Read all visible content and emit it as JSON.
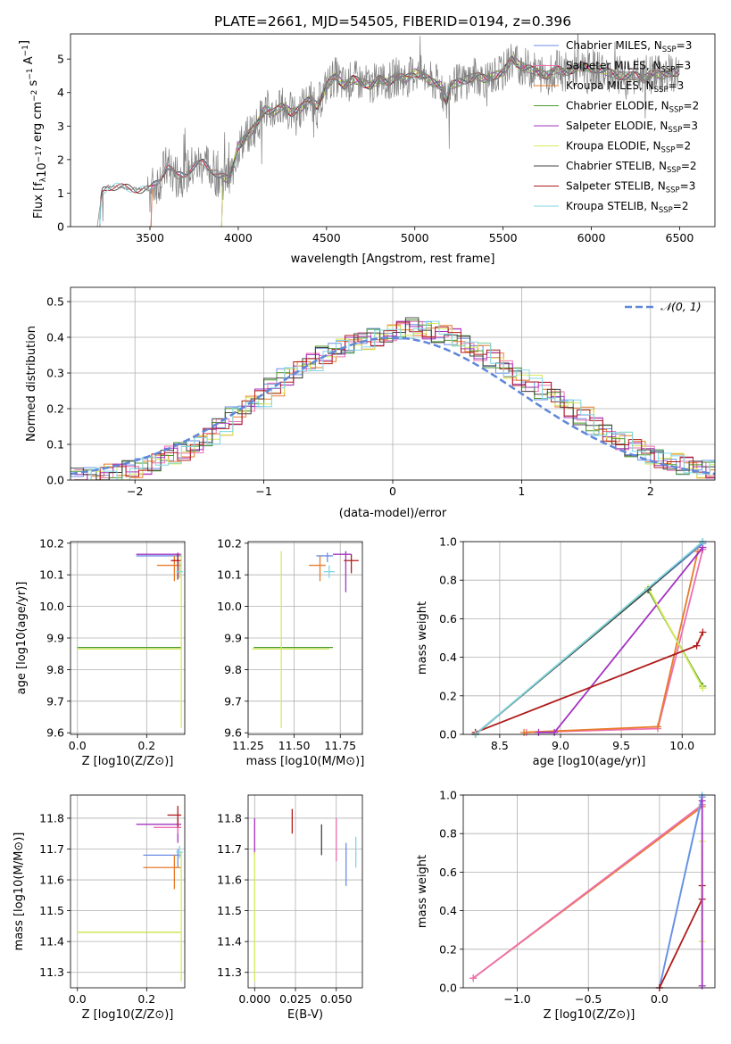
{
  "figure_title": "PLATE=2661, MJD=54505, FIBERID=0194, z=0.396",
  "chart_data": [
    {
      "id": "spectrum",
      "type": "line",
      "title": "PLATE=2661, MJD=54505, FIBERID=0194, z=0.396",
      "xlabel": "wavelength [Angstrom, rest frame]",
      "ylabel": "Flux [f_λ 10^-17 erg cm^-2 s^-1 A^-1]",
      "xlim": [
        3050,
        6700
      ],
      "ylim": [
        0,
        5.75
      ],
      "xticks": [
        3500,
        4000,
        4500,
        5000,
        5500,
        6000,
        6500
      ],
      "yticks": [
        0,
        1,
        2,
        3,
        4,
        5
      ],
      "grid": false,
      "legend_position": "upper-right",
      "data_curve": {
        "color": "#808080",
        "x": [
          3200,
          3230,
          3260,
          3300,
          3350,
          3400,
          3450,
          3500,
          3550,
          3600,
          3650,
          3700,
          3750,
          3800,
          3850,
          3900,
          3950,
          4000,
          4050,
          4100,
          4150,
          4200,
          4250,
          4300,
          4350,
          4400,
          4450,
          4500,
          4550,
          4600,
          4650,
          4700,
          4750,
          4800,
          4850,
          4900,
          4950,
          5000,
          5050,
          5100,
          5150,
          5180,
          5200,
          5250,
          5300,
          5350,
          5400,
          5450,
          5500,
          5550,
          5600,
          5650,
          5700,
          5750,
          5800,
          5850,
          5900,
          5950,
          6000,
          6050,
          6100,
          6150,
          6200,
          6250,
          6300,
          6350,
          6400,
          6450,
          6500
        ],
        "y": [
          0,
          1.05,
          1.2,
          1.2,
          1.15,
          1.15,
          1.1,
          1.1,
          1.4,
          1.8,
          1.5,
          1.6,
          1.8,
          1.9,
          1.7,
          1.5,
          1.4,
          2.4,
          2.7,
          3.0,
          3.5,
          3.4,
          3.6,
          3.4,
          3.5,
          3.8,
          3.6,
          4.2,
          4.5,
          4.2,
          4.4,
          4.3,
          4.2,
          4.4,
          4.3,
          4.5,
          4.4,
          4.6,
          4.5,
          4.3,
          4.2,
          3.7,
          4.2,
          4.3,
          4.4,
          4.5,
          4.4,
          4.5,
          4.6,
          5.0,
          4.8,
          4.7,
          4.6,
          4.5,
          4.7,
          4.6,
          4.7,
          4.8,
          4.7,
          4.7,
          4.6,
          4.5,
          4.5,
          4.5,
          4.4,
          4.6,
          4.5,
          4.6,
          4.6
        ]
      },
      "series": [
        {
          "name": "Chabrier MILES, N_SSP=3",
          "color": "#6b8ee6"
        },
        {
          "name": "Salpeter MILES, N_SSP=3",
          "color": "#ee6fb0"
        },
        {
          "name": "Kroupa MILES, N_SSP=3",
          "color": "#e77b2a"
        },
        {
          "name": "Chabrier ELODIE, N_SSP=2",
          "color": "#4c9a2a"
        },
        {
          "name": "Salpeter ELODIE, N_SSP=3",
          "color": "#a334c0"
        },
        {
          "name": "Kroupa ELODIE, N_SSP=2",
          "color": "#d7ea5a"
        },
        {
          "name": "Chabrier STELIB, N_SSP=2",
          "color": "#444444"
        },
        {
          "name": "Salpeter STELIB, N_SSP=3",
          "color": "#b01c1c"
        },
        {
          "name": "Kroupa STELIB, N_SSP=2",
          "color": "#7fd6e6"
        }
      ],
      "legend_entries": [
        {
          "base": "Chabrier MILES, N",
          "sub": "SSP",
          "tail": "=3"
        },
        {
          "base": "Salpeter MILES, N",
          "sub": "SSP",
          "tail": "=3"
        },
        {
          "base": "Kroupa MILES, N",
          "sub": "SSP",
          "tail": "=3"
        },
        {
          "base": "Chabrier ELODIE, N",
          "sub": "SSP",
          "tail": "=2"
        },
        {
          "base": "Salpeter ELODIE, N",
          "sub": "SSP",
          "tail": "=3"
        },
        {
          "base": "Kroupa ELODIE, N",
          "sub": "SSP",
          "tail": "=2"
        },
        {
          "base": "Chabrier STELIB, N",
          "sub": "SSP",
          "tail": "=2"
        },
        {
          "base": "Salpeter STELIB, N",
          "sub": "SSP",
          "tail": "=3"
        },
        {
          "base": "Kroupa STELIB, N",
          "sub": "SSP",
          "tail": "=2"
        }
      ]
    },
    {
      "id": "residuals",
      "type": "histogram",
      "xlabel": "(data-model)/error",
      "ylabel": "Normed distribution",
      "xlim": [
        -2.5,
        2.5
      ],
      "ylim": [
        0,
        0.54
      ],
      "xticks": [
        -2,
        -1,
        0,
        1,
        2
      ],
      "yticks": [
        0.0,
        0.1,
        0.2,
        0.3,
        0.4,
        0.5
      ],
      "grid": true,
      "legend": {
        "label": "𝒩(0, 1)",
        "position": "upper-right",
        "color": "#5f87d9",
        "style": "dashed"
      },
      "bin_edges_start": -2.5,
      "bin_width": 0.1,
      "histogram_values": [
        0.01,
        0.01,
        0.02,
        0.02,
        0.03,
        0.04,
        0.05,
        0.07,
        0.08,
        0.1,
        0.12,
        0.15,
        0.18,
        0.21,
        0.23,
        0.26,
        0.29,
        0.31,
        0.33,
        0.35,
        0.37,
        0.38,
        0.39,
        0.4,
        0.41,
        0.42,
        0.43,
        0.42,
        0.41,
        0.4,
        0.38,
        0.36,
        0.34,
        0.31,
        0.29,
        0.27,
        0.25,
        0.23,
        0.2,
        0.18,
        0.15,
        0.13,
        0.11,
        0.09,
        0.07,
        0.06,
        0.05,
        0.04,
        0.03,
        0.03
      ]
    },
    {
      "id": "age-vs-Z",
      "type": "scatter",
      "xlabel": "Z [log10(Z/Z⊙)]",
      "ylabel": "age [log10(age/yr)]",
      "xlim": [
        -0.02,
        0.31
      ],
      "ylim": [
        9.595,
        10.205
      ],
      "xticks": [
        0.0,
        0.2
      ],
      "yticks": [
        9.6,
        9.7,
        9.8,
        9.9,
        10.0,
        10.1,
        10.2
      ],
      "grid": true,
      "points": [
        {
          "series": "Chabrier MILES",
          "x": 0.29,
          "y": 10.16,
          "xerr": [
            0.12,
            0.01
          ],
          "yerr": [
            0.02,
            0.01
          ]
        },
        {
          "series": "Salpeter ELODIE",
          "x": 0.29,
          "y": 10.165,
          "xerr": [
            0.12,
            0.01
          ],
          "yerr": [
            0.03,
            0.005
          ]
        },
        {
          "series": "Kroupa MILES",
          "x": 0.28,
          "y": 10.13,
          "xerr": [
            0.05,
            0.02
          ],
          "yerr": [
            0.05,
            0.03
          ]
        },
        {
          "series": "Salpeter STELIB",
          "x": 0.29,
          "y": 10.145,
          "xerr": [
            0.02,
            0.01
          ],
          "yerr": [
            0.06,
            0.02
          ]
        },
        {
          "series": "Kroupa STELIB",
          "x": 0.295,
          "y": 10.11,
          "xerr": [
            0.01,
            0.01
          ],
          "yerr": [
            0.02,
            0.03
          ]
        },
        {
          "series": "Chabrier ELODIE",
          "x": 0.0,
          "y": 9.87,
          "xerr": [
            0.0,
            0.3
          ],
          "yerr": [
            0.0,
            0.0
          ]
        },
        {
          "series": "Kroupa ELODIE",
          "x": 0.3,
          "y": 9.865,
          "xerr": [
            0.3,
            0.0
          ],
          "yerr": [
            0.25,
            0.3
          ]
        }
      ]
    },
    {
      "id": "age-vs-mass",
      "type": "scatter",
      "xlabel": "mass [log10(M/M⊙)]",
      "ylabel": "",
      "xlim": [
        11.25,
        11.87
      ],
      "ylim": [
        9.595,
        10.205
      ],
      "xticks": [
        11.25,
        11.5,
        11.75
      ],
      "yticks": [
        9.6,
        9.7,
        9.8,
        9.9,
        10.0,
        10.1,
        10.2
      ],
      "grid": true,
      "points": [
        {
          "series": "Chabrier MILES",
          "x": 11.68,
          "y": 10.16,
          "xerr": [
            0.06,
            0.03
          ],
          "yerr": [
            0.02,
            0.01
          ]
        },
        {
          "series": "Salpeter ELODIE",
          "x": 11.78,
          "y": 10.165,
          "xerr": [
            0.07,
            0.03
          ],
          "yerr": [
            0.12,
            0.01
          ]
        },
        {
          "series": "Kroupa MILES",
          "x": 11.64,
          "y": 10.13,
          "xerr": [
            0.06,
            0.03
          ],
          "yerr": [
            0.05,
            0.03
          ]
        },
        {
          "series": "Salpeter STELIB",
          "x": 11.81,
          "y": 10.145,
          "xerr": [
            0.04,
            0.04
          ],
          "yerr": [
            0.04,
            0.02
          ]
        },
        {
          "series": "Kroupa STELIB",
          "x": 11.69,
          "y": 10.11,
          "xerr": [
            0.03,
            0.03
          ],
          "yerr": [
            0.02,
            0.02
          ]
        },
        {
          "series": "Chabrier ELODIE",
          "x": 11.43,
          "y": 9.87,
          "xerr": [
            0.15,
            0.28
          ],
          "yerr": [
            0.0,
            0.0
          ]
        },
        {
          "series": "Kroupa ELODIE",
          "x": 11.43,
          "y": 9.865,
          "xerr": [
            0.16,
            0.26
          ],
          "yerr": [
            0.25,
            0.31
          ]
        }
      ]
    },
    {
      "id": "weight-vs-age",
      "type": "line",
      "xlabel": "age [log10(age/yr)]",
      "ylabel": "mass weight",
      "xlim": [
        8.2,
        10.27
      ],
      "ylim": [
        0,
        1.0
      ],
      "xticks": [
        8.5,
        9.0,
        9.5,
        10.0
      ],
      "yticks": [
        0.0,
        0.2,
        0.4,
        0.6,
        0.8,
        1.0
      ],
      "grid": true,
      "series_points": [
        {
          "series": "Chabrier MILES",
          "x": [
            8.3,
            10.17
          ],
          "y": [
            0.0,
            0.99
          ]
        },
        {
          "series": "Salpeter MILES",
          "x": [
            8.72,
            9.8,
            10.17
          ],
          "y": [
            0.01,
            0.03,
            0.96
          ]
        },
        {
          "series": "Kroupa MILES",
          "x": [
            8.7,
            9.8,
            10.13
          ],
          "y": [
            0.01,
            0.04,
            0.95
          ]
        },
        {
          "series": "Chabrier ELODIE",
          "x": [
            8.3,
            9.72,
            10.17
          ],
          "y": [
            0.0,
            0.75,
            0.25
          ]
        },
        {
          "series": "Salpeter ELODIE",
          "x": [
            8.82,
            8.95,
            10.17
          ],
          "y": [
            0.01,
            0.01,
            0.97
          ]
        },
        {
          "series": "Kroupa ELODIE",
          "x": [
            8.3,
            9.72,
            10.17
          ],
          "y": [
            0.0,
            0.76,
            0.24
          ]
        },
        {
          "series": "Chabrier STELIB",
          "x": [
            8.3,
            9.72,
            10.17
          ],
          "y": [
            0.0,
            0.75,
            1.0
          ]
        },
        {
          "series": "Salpeter STELIB",
          "x": [
            8.3,
            10.12,
            10.17
          ],
          "y": [
            0.01,
            0.46,
            0.53
          ]
        },
        {
          "series": "Kroupa STELIB",
          "x": [
            8.3,
            10.17
          ],
          "y": [
            0.0,
            1.0
          ]
        }
      ]
    },
    {
      "id": "mass-vs-Z",
      "type": "scatter",
      "xlabel": "Z [log10(Z/Z⊙)]",
      "ylabel": "mass [log10(M/M⊙)]",
      "xlim": [
        -0.02,
        0.31
      ],
      "ylim": [
        11.25,
        11.875
      ],
      "xticks": [
        0.0,
        0.2
      ],
      "yticks": [
        11.3,
        11.4,
        11.5,
        11.6,
        11.7,
        11.8
      ],
      "grid": true,
      "points": [
        {
          "series": "Chabrier MILES",
          "x": 0.29,
          "y": 11.68,
          "xerr": [
            0.1,
            0.01
          ],
          "yerr": [
            0.04,
            0.02
          ]
        },
        {
          "series": "Salpeter ELODIE",
          "x": 0.29,
          "y": 11.78,
          "xerr": [
            0.12,
            0.01
          ],
          "yerr": [
            0.06,
            0.02
          ]
        },
        {
          "series": "Salpeter MILES",
          "x": 0.29,
          "y": 11.77,
          "xerr": [
            0.07,
            0.01
          ],
          "yerr": [
            0.02,
            0.02
          ]
        },
        {
          "series": "Kroupa MILES",
          "x": 0.28,
          "y": 11.64,
          "xerr": [
            0.09,
            0.02
          ],
          "yerr": [
            0.07,
            0.04
          ]
        },
        {
          "series": "Salpeter STELIB",
          "x": 0.29,
          "y": 11.81,
          "xerr": [
            0.03,
            0.01
          ],
          "yerr": [
            0.04,
            0.03
          ]
        },
        {
          "series": "Kroupa STELIB",
          "x": 0.295,
          "y": 11.69,
          "xerr": [
            0.01,
            0.01
          ],
          "yerr": [
            0.02,
            0.02
          ]
        },
        {
          "series": "Chabrier ELODIE",
          "x": 0.0,
          "y": 11.43,
          "xerr": [
            0.0,
            0.3
          ],
          "yerr": [
            0.0,
            0.0
          ]
        },
        {
          "series": "Kroupa ELODIE",
          "x": 0.3,
          "y": 11.43,
          "xerr": [
            0.3,
            0.0
          ],
          "yerr": [
            0.16,
            0.26
          ]
        }
      ]
    },
    {
      "id": "mass-vs-ebv",
      "type": "scatter",
      "xlabel": "E(B-V)",
      "ylabel": "",
      "xlim": [
        -0.004,
        0.066
      ],
      "ylim": [
        11.25,
        11.875
      ],
      "xticks": [
        0.0,
        0.025,
        0.05
      ],
      "yticks": [
        11.3,
        11.4,
        11.5,
        11.6,
        11.7,
        11.8
      ],
      "grid": true,
      "points": [
        {
          "series": "Salpeter ELODIE",
          "x": 0.0,
          "y": 11.74,
          "xerr": [
            0,
            0
          ],
          "yerr": [
            0.06,
            0.06
          ]
        },
        {
          "series": "Kroupa ELODIE",
          "x": 0.0,
          "y": 11.43,
          "xerr": [
            0,
            0
          ],
          "yerr": [
            0.16,
            0.26
          ]
        },
        {
          "series": "Salpeter STELIB",
          "x": 0.023,
          "y": 11.79,
          "xerr": [
            0,
            0
          ],
          "yerr": [
            0.04,
            0.04
          ]
        },
        {
          "series": "Chabrier STELIB",
          "x": 0.041,
          "y": 11.73,
          "xerr": [
            0,
            0
          ],
          "yerr": [
            0.05,
            0.05
          ]
        },
        {
          "series": "Salpeter MILES",
          "x": 0.05,
          "y": 11.73,
          "xerr": [
            0,
            0
          ],
          "yerr": [
            0.07,
            0.07
          ]
        },
        {
          "series": "Chabrier MILES",
          "x": 0.056,
          "y": 11.65,
          "xerr": [
            0,
            0
          ],
          "yerr": [
            0.07,
            0.07
          ]
        },
        {
          "series": "Kroupa STELIB",
          "x": 0.062,
          "y": 11.69,
          "xerr": [
            0,
            0
          ],
          "yerr": [
            0.05,
            0.05
          ]
        }
      ]
    },
    {
      "id": "weight-vs-Z",
      "type": "line",
      "xlabel": "Z [log10(Z/Z⊙)]",
      "ylabel": "mass weight",
      "xlim": [
        -1.38,
        0.39
      ],
      "ylim": [
        0,
        1.0
      ],
      "xticks": [
        -1.0,
        -0.5,
        0.0
      ],
      "yticks": [
        0.0,
        0.2,
        0.4,
        0.6,
        0.8,
        1.0
      ],
      "grid": true,
      "series_points": [
        {
          "series": "Kroupa MILES",
          "x": [
            -1.31,
            0.3
          ],
          "y": [
            0.05,
            0.94
          ]
        },
        {
          "series": "Salpeter MILES",
          "x": [
            -1.31,
            0.3
          ],
          "y": [
            0.05,
            0.95
          ]
        },
        {
          "series": "Kroupa STELIB",
          "x": [
            0.0,
            0.3
          ],
          "y": [
            0.0,
            1.0
          ]
        },
        {
          "series": "Chabrier MILES",
          "x": [
            0.0,
            0.3
          ],
          "y": [
            0.0,
            0.99
          ]
        },
        {
          "series": "Salpeter STELIB",
          "x": [
            0.0,
            0.3,
            0.3
          ],
          "y": [
            0.0,
            0.46,
            0.53
          ]
        },
        {
          "series": "Kroupa ELODIE",
          "x": [
            0.3,
            0.3
          ],
          "y": [
            0.24,
            0.76
          ]
        },
        {
          "series": "Salpeter ELODIE",
          "x": [
            0.3,
            0.3
          ],
          "y": [
            0.01,
            0.97
          ]
        }
      ]
    }
  ]
}
